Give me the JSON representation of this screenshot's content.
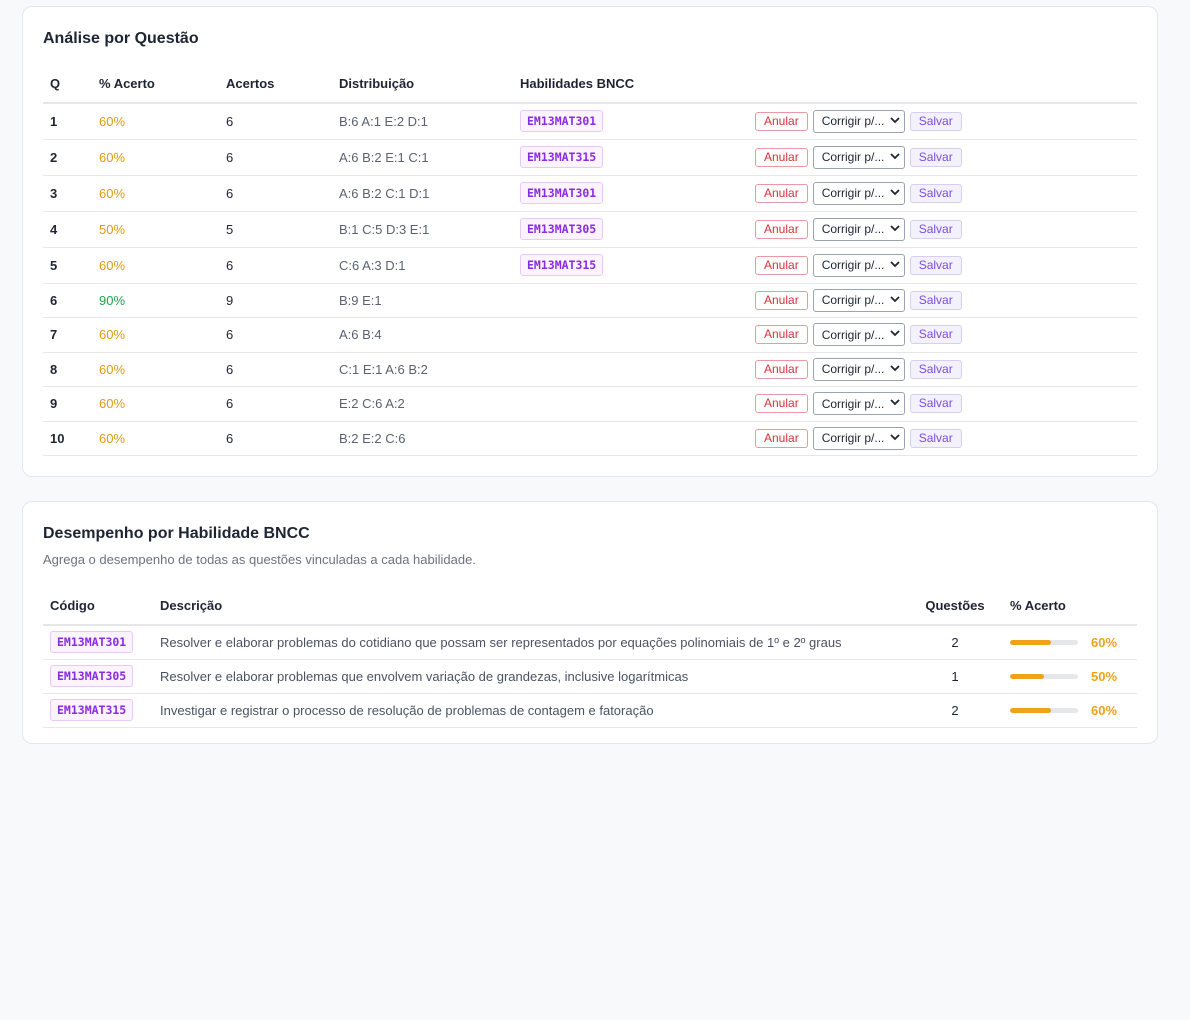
{
  "questions_card": {
    "title": "Análise por Questão",
    "headers": {
      "q": "Q",
      "pct": "% Acerto",
      "hits": "Acertos",
      "dist": "Distribuição",
      "skills": "Habilidades BNCC"
    },
    "rows": [
      {
        "q": "1",
        "pct": "60%",
        "hits": "6",
        "dist": "B:6 A:1 E:2 D:1",
        "skill": "EM13MAT301"
      },
      {
        "q": "2",
        "pct": "60%",
        "hits": "6",
        "dist": "A:6 B:2 E:1 C:1",
        "skill": "EM13MAT315"
      },
      {
        "q": "3",
        "pct": "60%",
        "hits": "6",
        "dist": "A:6 B:2 C:1 D:1",
        "skill": "EM13MAT301"
      },
      {
        "q": "4",
        "pct": "50%",
        "hits": "5",
        "dist": "B:1 C:5 D:3 E:1",
        "skill": "EM13MAT305"
      },
      {
        "q": "5",
        "pct": "60%",
        "hits": "6",
        "dist": "C:6 A:3 D:1",
        "skill": "EM13MAT315"
      },
      {
        "q": "6",
        "pct": "90%",
        "hits": "9",
        "dist": "B:9 E:1",
        "skill": ""
      },
      {
        "q": "7",
        "pct": "60%",
        "hits": "6",
        "dist": "A:6 B:4",
        "skill": ""
      },
      {
        "q": "8",
        "pct": "60%",
        "hits": "6",
        "dist": "C:1 E:1 A:6 B:2",
        "skill": ""
      },
      {
        "q": "9",
        "pct": "60%",
        "hits": "6",
        "dist": "E:2 C:6 A:2",
        "skill": ""
      },
      {
        "q": "10",
        "pct": "60%",
        "hits": "6",
        "dist": "B:2 E:2 C:6",
        "skill": ""
      }
    ],
    "actions": {
      "anular": "Anular",
      "corrigir_placeholder": "Corrigir p/...",
      "salvar": "Salvar"
    }
  },
  "skills_card": {
    "title": "Desempenho por Habilidade BNCC",
    "subtitle": "Agrega o desempenho de todas as questões vinculadas a cada habilidade.",
    "headers": {
      "code": "Código",
      "desc": "Descrição",
      "count": "Questões",
      "pct": "% Acerto"
    },
    "rows": [
      {
        "code": "EM13MAT301",
        "desc": "Resolver e elaborar problemas do cotidiano que possam ser representados por equações polinomiais de 1º e 2º graus",
        "count": "2",
        "pct": "60%",
        "fraction": 0.6
      },
      {
        "code": "EM13MAT305",
        "desc": "Resolver e elaborar problemas que envolvem variação de grandezas, inclusive logarítmicas",
        "count": "1",
        "pct": "50%",
        "fraction": 0.5
      },
      {
        "code": "EM13MAT315",
        "desc": "Investigar e registrar o processo de resolução de problemas de contagem e fatoração",
        "count": "2",
        "pct": "60%",
        "fraction": 0.6
      }
    ]
  },
  "colors": {
    "pct_mid": "#e09b12",
    "pct_high": "#22a04b",
    "bar_fill": "#f0a21a",
    "badge_text": "#8a2be2",
    "anular": "#dc2f3a",
    "salvar": "#7c4ddc"
  }
}
